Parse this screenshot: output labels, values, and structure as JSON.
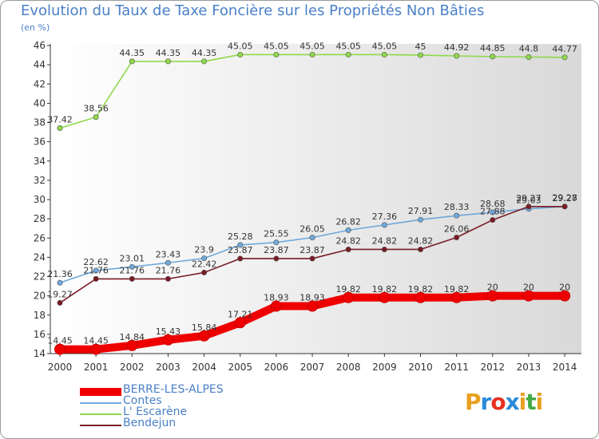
{
  "title": "Evolution du Taux de Taxe Foncière sur les Propriétés Non Bâties",
  "unit_label": "(en %)",
  "logo": {
    "text": "Proxiti",
    "colors": [
      "#e8a020",
      "#2a8ad8",
      "#e83020",
      "#2a8ad8",
      "#e8a020",
      "#44aa44",
      "#e8a020"
    ]
  },
  "chart_data": {
    "type": "line",
    "title": "Evolution du Taux de Taxe Foncière sur les Propriétés Non Bâties",
    "ylabel": "(en %)",
    "xlabel": "",
    "x": [
      2000,
      2001,
      2002,
      2003,
      2004,
      2005,
      2006,
      2007,
      2008,
      2009,
      2010,
      2011,
      2012,
      2013,
      2014
    ],
    "ylim": [
      14,
      46
    ],
    "ytick_step": 2,
    "grid": false,
    "legend_position": "bottom-left",
    "series": [
      {
        "name": "BERRE-LES-ALPES",
        "color": "#ee0000",
        "width": "thick",
        "values": [
          14.45,
          14.45,
          14.84,
          15.43,
          15.84,
          17.21,
          18.93,
          18.93,
          19.82,
          19.82,
          19.82,
          19.82,
          20,
          20,
          20
        ],
        "labels": [
          "14.45",
          "14.45",
          "14.84",
          "15.43",
          "15.84",
          "17.21",
          "18.93",
          "18.93",
          "19.82",
          "19.82",
          "19.82",
          "19.82",
          "20",
          "20",
          "20"
        ]
      },
      {
        "name": "Contes",
        "color": "#6fa8dc",
        "width": "thin",
        "values": [
          21.36,
          22.62,
          23.01,
          23.43,
          23.9,
          25.28,
          25.55,
          26.05,
          26.82,
          27.36,
          27.91,
          28.33,
          28.68,
          29.03,
          29.28
        ],
        "labels": [
          "21.36",
          "22.62",
          "23.01",
          "23.43",
          "23.9",
          "25.28",
          "25.55",
          "26.05",
          "26.82",
          "27.36",
          "27.91",
          "28.33",
          "28.68",
          "29.03",
          "29.28"
        ]
      },
      {
        "name": "L' Escarène",
        "color": "#8fd94a",
        "width": "thin",
        "values": [
          37.42,
          38.56,
          44.35,
          44.35,
          44.35,
          45.05,
          45.05,
          45.05,
          45.05,
          45.05,
          45,
          44.92,
          44.85,
          44.8,
          44.77
        ],
        "labels": [
          "37.42",
          "38.56",
          "44.35",
          "44.35",
          "44.35",
          "45.05",
          "45.05",
          "45.05",
          "45.05",
          "45.05",
          "45",
          "44.92",
          "44.85",
          "44.8",
          "44.77"
        ]
      },
      {
        "name": "Bendejun",
        "color": "#7a1a24",
        "width": "thin",
        "values": [
          19.27,
          21.76,
          21.76,
          21.76,
          22.42,
          23.87,
          23.87,
          23.87,
          24.82,
          24.82,
          24.82,
          26.06,
          27.88,
          29.27,
          29.27
        ],
        "labels": [
          "19.27",
          "21.76",
          "21.76",
          "21.76",
          "22.42",
          "23.87",
          "23.87",
          "23.87",
          "24.82",
          "24.82",
          "24.82",
          "26.06",
          "27.88",
          "29.27",
          "29.27"
        ]
      }
    ]
  }
}
